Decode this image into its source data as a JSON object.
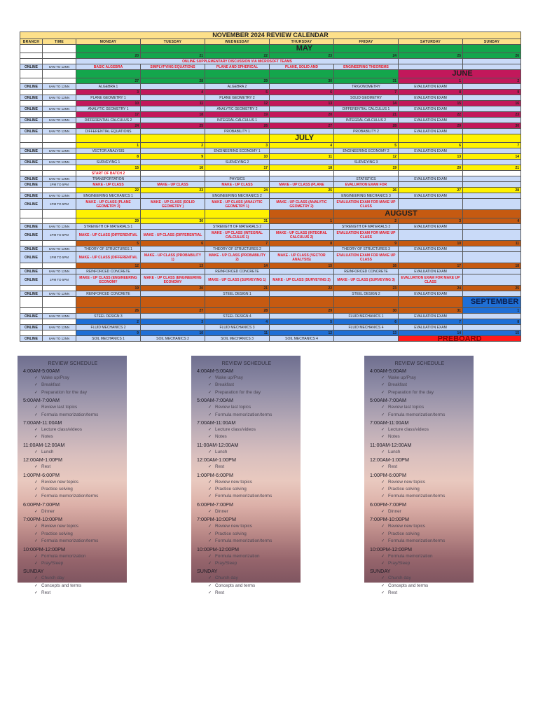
{
  "calendar": {
    "title": "NOVEMBER 2024 REVIEW CALENDAR",
    "headers": [
      "BRANCH",
      "TIME",
      "MONDAY",
      "TUESDAY",
      "WEDNESDAY",
      "THURSDAY",
      "FRIDAY",
      "SATURDAY",
      "SUNDAY"
    ],
    "month_labels": {
      "may": "MAY",
      "june": "JUNE",
      "july": "JULY",
      "august": "AUGUST",
      "september": "SEPTEMBER",
      "preboard": "PREBOARD"
    },
    "colors": {
      "header": "#fde08a",
      "may": "#14a64c",
      "june": "#c2185b",
      "july": "#fff200",
      "august": "#c65a11",
      "september": "#1f6fd6",
      "session": "#c9daf8",
      "alert_text": "#e8141e",
      "preboard": "#ff1a1a"
    },
    "branch": "ONLINE",
    "time_am": "8AM TO 12NN",
    "time_pm": "1PM TO 5PM",
    "weeks": [
      {
        "days": [
          "20",
          "21",
          "22",
          "23",
          "24",
          "25",
          "26"
        ]
      },
      {
        "days": [
          "27",
          "28",
          "29",
          "30",
          "31",
          "1",
          "2"
        ]
      },
      {
        "days": [
          "3",
          "4",
          "5",
          "6",
          "7",
          "8",
          "9"
        ]
      },
      {
        "days": [
          "10",
          "11",
          "12",
          "13",
          "14",
          "15",
          "16"
        ]
      },
      {
        "days": [
          "17",
          "18",
          "19",
          "20",
          "21",
          "22",
          "23"
        ]
      },
      {
        "days": [
          "24",
          "25",
          "26",
          "27",
          "28",
          "29",
          "30"
        ]
      },
      {
        "days": [
          "1",
          "2",
          "3",
          "4",
          "5",
          "6",
          "7"
        ]
      },
      {
        "days": [
          "8",
          "9",
          "10",
          "11",
          "12",
          "13",
          "14"
        ]
      },
      {
        "days": [
          "15",
          "16",
          "17",
          "18",
          "19",
          "20",
          "21"
        ]
      },
      {
        "days": [
          "22",
          "23",
          "24",
          "25",
          "26",
          "27",
          "28"
        ]
      },
      {
        "days": [
          "29",
          "30",
          "31",
          "1",
          "2",
          "3",
          "4"
        ]
      },
      {
        "days": [
          "5",
          "6",
          "7",
          "8",
          "9",
          "10",
          "11"
        ]
      },
      {
        "days": [
          "12",
          "13",
          "14",
          "15",
          "16",
          "17",
          "18"
        ]
      },
      {
        "days": [
          "19",
          "20",
          "21",
          "22",
          "23",
          "24",
          "25"
        ]
      },
      {
        "days": [
          "26",
          "27",
          "28",
          "29",
          "30",
          "31",
          "1"
        ]
      },
      {
        "days": [
          "2",
          "3",
          "4",
          "5",
          "6",
          "7",
          "8"
        ]
      },
      {
        "days": [
          "9",
          "10",
          "11",
          "12",
          "13",
          "14",
          "15"
        ]
      }
    ],
    "banner_supplementary": "ONLINE SUPPLEMENTARY DISCUSSION VIA MICROSOFT TEAMS",
    "start_batch": "START OF BATCH 2",
    "sessions": {
      "w0": [
        "BASIC ALGEBRA",
        "SIMPLYFYING EQUATIONS",
        "PLANE AND SPHERICAL",
        "PLANE, SOLID AND",
        "ENGINEERING THEOREMS",
        "",
        ""
      ],
      "w1": [
        "ALGEBRA 1",
        "",
        "ALGEBRA 2",
        "",
        "TRIGONOMETRY",
        "EVALUATION EXAM",
        ""
      ],
      "w2": [
        "PLANE GEOMETRY 1",
        "",
        "PLANE GEOMETRY 2",
        "",
        "SOLID GEOMETRY",
        "EVALUATION EXAM",
        ""
      ],
      "w3": [
        "ANALYTIC GEOMETRY 1",
        "",
        "ANALYTIC GEOMETRY 2",
        "",
        "DIFFERENTIAL CALCULUS 1",
        "EVALUATION EXAM",
        ""
      ],
      "w4": [
        "DIFFERENTIAL CALCULUS 2",
        "",
        "INTEGRAL CALCULUS 1",
        "",
        "INTEGRAL CALCULUS 2",
        "EVALUATION EXAM",
        ""
      ],
      "w5": [
        "DIFFERENTIAL EQUATIONS",
        "",
        "PROBABILITY 1",
        "",
        "PROBABILITY 2",
        "EVALUATION EXAM",
        ""
      ],
      "w6": [
        "VECTOR ANALYSIS",
        "",
        "ENGINEERING ECONOMY 1",
        "",
        "ENGINEERING ECONOMY 2",
        "EVALUATION EXAM",
        ""
      ],
      "w7": [
        "SURVEYING 1",
        "",
        "SURVEYING 2",
        "",
        "SURVEYING 3",
        "",
        ""
      ],
      "w8_am": [
        "TRANSPORTATION",
        "",
        "PHYSICS",
        "",
        "STATISTICS",
        "EVALUATION EXAM",
        ""
      ],
      "w8_pm": [
        "MAKE - UP CLASS",
        "MAKE - UP CLASS",
        "MAKE - UP CLASS",
        "MAKE - UP CLASS (PLANE",
        "EVALUATION EXAM FOR",
        "",
        ""
      ],
      "w9_am": [
        "ENGINEERING MECHANICS 1",
        "",
        "ENGINEERING MECHANICS 2",
        "",
        "ENGINEERING MECHANICS 3",
        "EVALUATION EXAM",
        ""
      ],
      "w9_pm": [
        "MAKE - UP CLASS (PLANE GEOMETRY 2)",
        "MAKE - UP CLASS (SOLID GEOMETRY )",
        "MAKE - UP CLASS (ANALYTIC GEOMETRY 1)",
        "MAKE - UP CLASS (ANALYTIC GEOMETRY 2)",
        "EVALUATION EXAM FOR MAKE UP CLASS",
        "",
        ""
      ],
      "w10_am": [
        "STRENGTH OF MATERIALS 1",
        "",
        "STRENGTH OF MATERIALS 2",
        "",
        "STRENGTH OF MATERIALS 3",
        "EVALUATION EXAM",
        ""
      ],
      "w10_pm": [
        "MAKE - UP CLASS (DIFFERENTIAL",
        "MAKE - UP CLASS (DIFFERENTIAL",
        "MAKE - UP CLASS (INTEGRAL CALCULUS 1)",
        "MAKE - UP CLASS (INTEGRAL CALCULUS 2)",
        "EVALUATION EXAM FOR MAKE UP CLASS",
        "",
        ""
      ],
      "w11_am": [
        "THEORY OF STRUCTURES 1",
        "",
        "THEORY OF STRUCTURES 2",
        "",
        "THEORY OF STRUCTURES 3",
        "EVALUATION EXAM",
        ""
      ],
      "w11_pm": [
        "MAKE - UP CLASS (DIFFERENTIAL",
        "MAKE - UP CLASS (PROBABILITY 1)",
        "MAKE - UP CLASS (PROBABILITY 2)",
        "MAKE - UP CLASS (VECTOR ANALYSIS)",
        "EVALUATION EXAM FOR MAKE UP CLASS",
        "",
        ""
      ],
      "w12_am": [
        "REINFORCED CONCRETE",
        "",
        "REINFORCED CONCRETE",
        "",
        "REINFORCED CONCRETE",
        "EVALUATION EXAM",
        ""
      ],
      "w12_pm": [
        "MAKE - UP CLASS (ENGINEERING ECONOMY",
        "MAKE - UP CLASS (ENGINEERING ECONOMY",
        "MAKE - UP CLASS (SURVEYING 1)",
        "MAKE - UP CLASS (SURVEYING 2)",
        "MAKE - UP CLASS (SURVEYING 3)",
        "EVALUATION EXAM FOR MAKE UP CLASS",
        ""
      ],
      "w13": [
        "REINFORCED CONCRETE",
        "",
        "STEEL DESIGN 1",
        "",
        "STEEL DESIGN 2",
        "EVALUATION EXAM",
        ""
      ],
      "w14": [
        "STEEL DESIGN 3",
        "",
        "STEEL DESIGN 4",
        "",
        "FLUID MECHANICS 1",
        "EVALUATION EXAM",
        ""
      ],
      "w15": [
        "FLUID MECHANICS 2",
        "",
        "FLUID MECHANICS 3",
        "",
        "FLUID MECHANICS 4",
        "EVALUATION EXAM",
        ""
      ],
      "w16": [
        "SOIL MECHANICS 1",
        "SOIL MECHANICS 2",
        "SOIL MECHANICS 3",
        "SOIL MECHANICS 4",
        "",
        "",
        ""
      ]
    }
  },
  "schedule_cards": [
    {
      "title": "REVIEW SCHEDULE"
    },
    {
      "title": "REVIEW SCHEDULE"
    },
    {
      "title": "REVIEW SCHEDULE"
    }
  ],
  "schedule": {
    "title": "REVIEW SCHEDULE",
    "check": "✓",
    "slots": [
      {
        "time": "4:00AM-5:00AM",
        "items": [
          "Wake up/Pray",
          "Breakfast",
          "Preparation for the day"
        ]
      },
      {
        "time": "5:00AM-7:00AM",
        "items": [
          "Review last topics",
          "Formula memorization/terms"
        ]
      },
      {
        "time": "7:00AM-11:00AM",
        "items": [
          "Lecture class/videos",
          "Notes"
        ]
      },
      {
        "time": "11:00AM-12:00AM",
        "items": [
          "Lunch"
        ]
      },
      {
        "time": "12:00AM-1:00PM",
        "items": [
          "Rest"
        ]
      },
      {
        "time": "1:00PM-6:00PM",
        "items": [
          "Review new topics",
          "Practice solving",
          "Formula memorization/terms"
        ]
      },
      {
        "time": "6:00PM-7:00PM",
        "items": [
          "Dinner"
        ]
      },
      {
        "time": "7:00PM-10:00PM",
        "items": [
          "Review new topics",
          "Practice solving",
          "Formula memorization/terms"
        ]
      },
      {
        "time": "10:00PM-12:00PM",
        "items": [
          "Formula memorization",
          "Pray/Sleep"
        ]
      },
      {
        "time": "SUNDAY",
        "items": [
          "Church day",
          "Concepts and terms",
          "Rest"
        ]
      }
    ]
  }
}
